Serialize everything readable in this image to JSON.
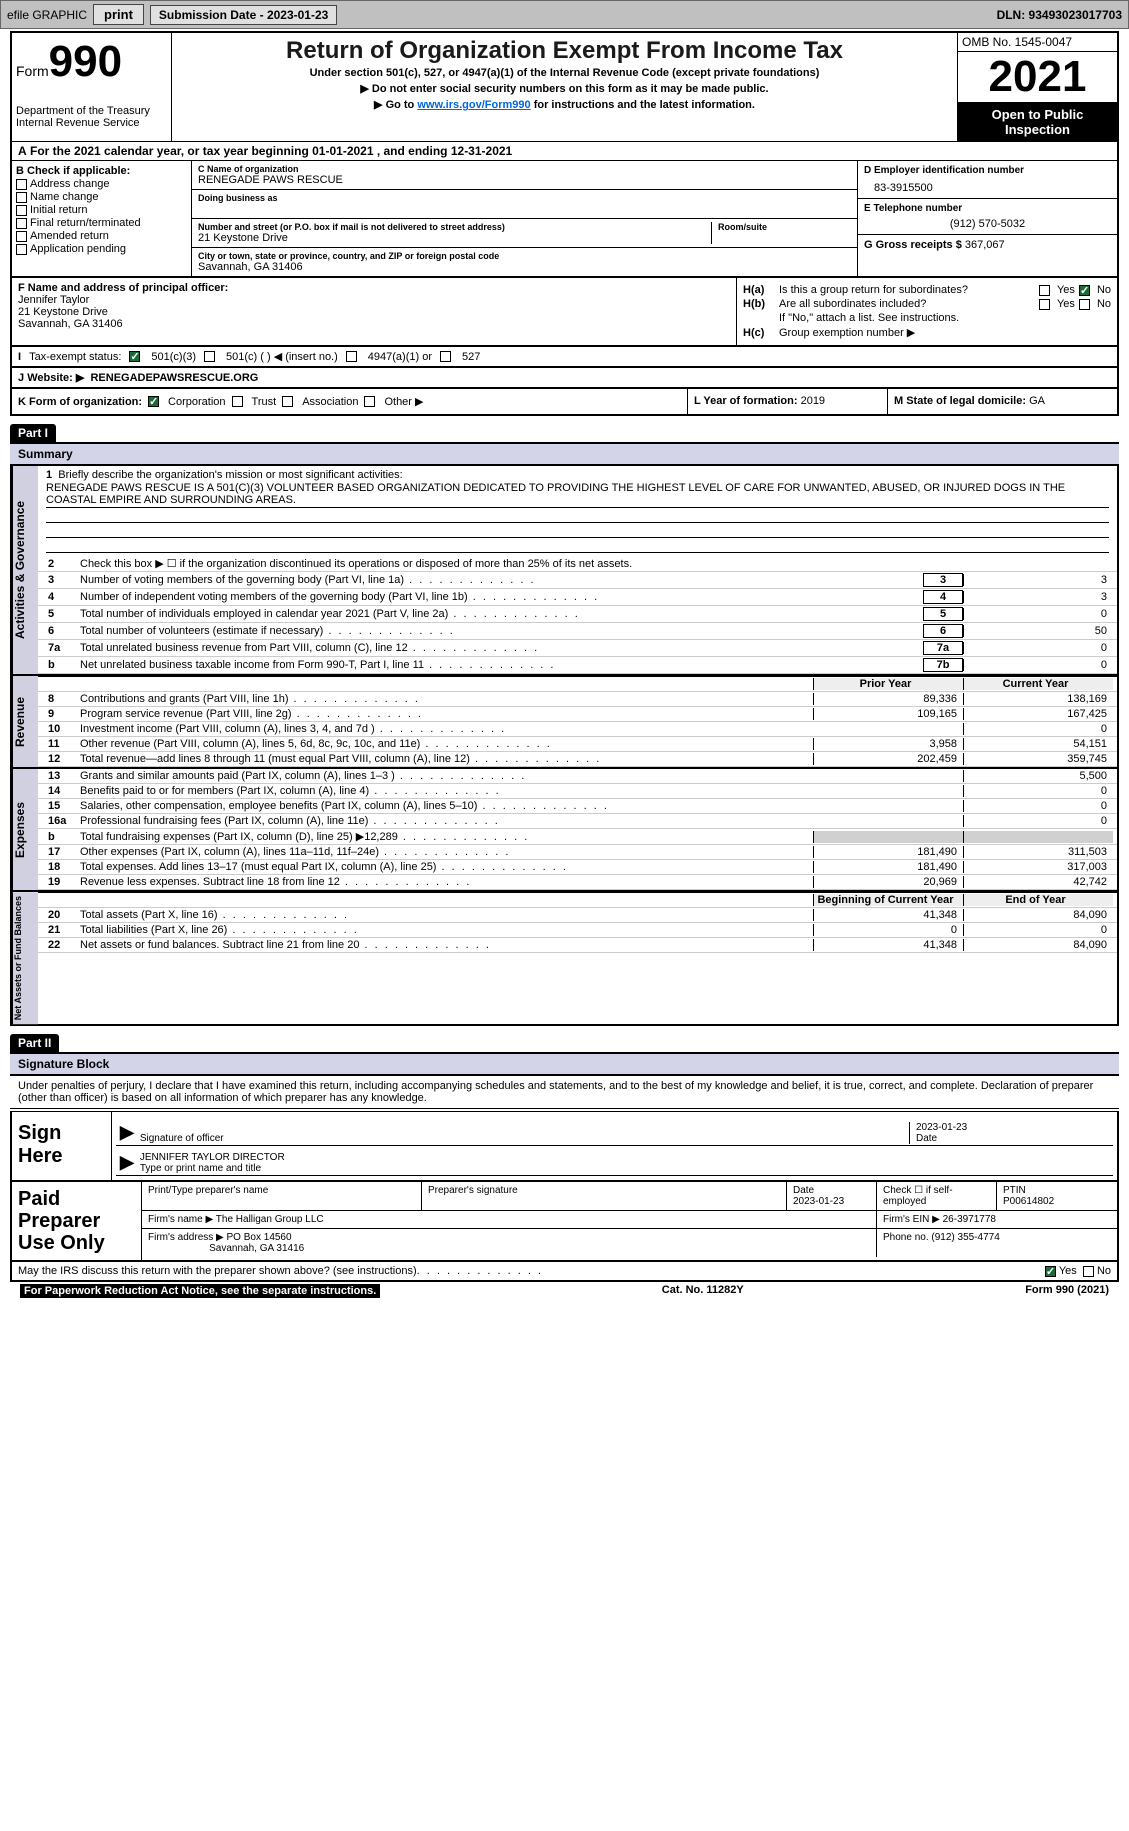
{
  "header_bar": {
    "efile_label": "efile GRAPHIC",
    "print_btn": "print",
    "sub_date_label": "Submission Date - 2023-01-23",
    "dln": "DLN: 93493023017703"
  },
  "top": {
    "form_prefix": "Form",
    "form_no": "990",
    "dept": "Department of the Treasury\nInternal Revenue Service",
    "title": "Return of Organization Exempt From Income Tax",
    "subtitle": "Under section 501(c), 527, or 4947(a)(1) of the Internal Revenue Code (except private foundations)",
    "instr1": "▶ Do not enter social security numbers on this form as it may be made public.",
    "instr2_pre": "▶ Go to ",
    "instr2_link": "www.irs.gov/Form990",
    "instr2_post": " for instructions and the latest information.",
    "omb": "OMB No. 1545-0047",
    "year": "2021",
    "open_pub": "Open to Public Inspection"
  },
  "sec_a": "For the 2021 calendar year, or tax year beginning 01-01-2021   , and ending 12-31-2021",
  "sec_b": {
    "label": "Check if applicable:",
    "opts": [
      "Address change",
      "Name change",
      "Initial return",
      "Final return/terminated",
      "Amended return",
      "Application pending"
    ]
  },
  "sec_c": {
    "name_lbl": "C Name of organization",
    "name": "RENEGADE PAWS RESCUE",
    "dba_lbl": "Doing business as",
    "addr_lbl": "Number and street (or P.O. box if mail is not delivered to street address)",
    "room_lbl": "Room/suite",
    "addr": "21 Keystone Drive",
    "city_lbl": "City or town, state or province, country, and ZIP or foreign postal code",
    "city": "Savannah, GA  31406"
  },
  "sec_d": {
    "ein_lbl": "D Employer identification number",
    "ein": "83-3915500",
    "phone_lbl": "E Telephone number",
    "phone": "(912) 570-5032",
    "gross_lbl": "G Gross receipts $",
    "gross": "367,067"
  },
  "sec_f": {
    "lbl": "F  Name and address of principal officer:",
    "name": "Jennifer Taylor",
    "addr1": "21 Keystone Drive",
    "addr2": "Savannah, GA  31406"
  },
  "sec_h": {
    "ha": "Is this a group return for subordinates?",
    "hb": "Are all subordinates included?",
    "hnote": "If \"No,\" attach a list. See instructions.",
    "hc": "Group exemption number ▶",
    "yes": "Yes",
    "no": "No"
  },
  "sec_i": {
    "lbl": "Tax-exempt status:",
    "o1": "501(c)(3)",
    "o2": "501(c) (  ) ◀ (insert no.)",
    "o3": "4947(a)(1) or",
    "o4": "527"
  },
  "sec_j": {
    "lbl": "Website: ▶",
    "val": "RENEGADEPAWSRESCUE.ORG"
  },
  "sec_k": {
    "lbl": "K Form of organization:",
    "opts": [
      "Corporation",
      "Trust",
      "Association",
      "Other ▶"
    ],
    "l_lbl": "L Year of formation:",
    "l_val": "2019",
    "m_lbl": "M State of legal domicile:",
    "m_val": "GA"
  },
  "part1": {
    "hdr": "Part I",
    "title": "Summary",
    "side1": "Activities & Governance",
    "side2": "Revenue",
    "side3": "Expenses",
    "side4": "Net Assets or Fund Balances",
    "l1_lbl": "Briefly describe the organization's mission or most significant activities:",
    "l1_txt": "RENEGADE PAWS RESCUE IS A 501(C)(3) VOLUNTEER BASED ORGANIZATION DEDICATED TO PROVIDING THE HIGHEST LEVEL OF CARE FOR UNWANTED, ABUSED, OR INJURED DOGS IN THE COASTAL EMPIRE AND SURROUNDING AREAS.",
    "l2": "Check this box ▶ ☐  if the organization discontinued its operations or disposed of more than 25% of its net assets.",
    "lines_gov": [
      {
        "n": "3",
        "t": "Number of voting members of the governing body (Part VI, line 1a)",
        "box": "3",
        "v": "3"
      },
      {
        "n": "4",
        "t": "Number of independent voting members of the governing body (Part VI, line 1b)",
        "box": "4",
        "v": "3"
      },
      {
        "n": "5",
        "t": "Total number of individuals employed in calendar year 2021 (Part V, line 2a)",
        "box": "5",
        "v": "0"
      },
      {
        "n": "6",
        "t": "Total number of volunteers (estimate if necessary)",
        "box": "6",
        "v": "50"
      },
      {
        "n": "7a",
        "t": "Total unrelated business revenue from Part VIII, column (C), line 12",
        "box": "7a",
        "v": "0"
      },
      {
        "n": "b",
        "t": "Net unrelated business taxable income from Form 990-T, Part I, line 11",
        "box": "7b",
        "v": "0"
      }
    ],
    "col_prior": "Prior Year",
    "col_curr": "Current Year",
    "rev": [
      {
        "n": "8",
        "t": "Contributions and grants (Part VIII, line 1h)",
        "p": "89,336",
        "c": "138,169"
      },
      {
        "n": "9",
        "t": "Program service revenue (Part VIII, line 2g)",
        "p": "109,165",
        "c": "167,425"
      },
      {
        "n": "10",
        "t": "Investment income (Part VIII, column (A), lines 3, 4, and 7d )",
        "p": "",
        "c": "0"
      },
      {
        "n": "11",
        "t": "Other revenue (Part VIII, column (A), lines 5, 6d, 8c, 9c, 10c, and 11e)",
        "p": "3,958",
        "c": "54,151"
      },
      {
        "n": "12",
        "t": "Total revenue—add lines 8 through 11 (must equal Part VIII, column (A), line 12)",
        "p": "202,459",
        "c": "359,745"
      }
    ],
    "exp": [
      {
        "n": "13",
        "t": "Grants and similar amounts paid (Part IX, column (A), lines 1–3 )",
        "p": "",
        "c": "5,500"
      },
      {
        "n": "14",
        "t": "Benefits paid to or for members (Part IX, column (A), line 4)",
        "p": "",
        "c": "0"
      },
      {
        "n": "15",
        "t": "Salaries, other compensation, employee benefits (Part IX, column (A), lines 5–10)",
        "p": "",
        "c": "0"
      },
      {
        "n": "16a",
        "t": "Professional fundraising fees (Part IX, column (A), line 11e)",
        "p": "",
        "c": "0"
      },
      {
        "n": "b",
        "t": "Total fundraising expenses (Part IX, column (D), line 25) ▶12,289",
        "p": "gray",
        "c": "gray"
      },
      {
        "n": "17",
        "t": "Other expenses (Part IX, column (A), lines 11a–11d, 11f–24e)",
        "p": "181,490",
        "c": "311,503"
      },
      {
        "n": "18",
        "t": "Total expenses. Add lines 13–17 (must equal Part IX, column (A), line 25)",
        "p": "181,490",
        "c": "317,003"
      },
      {
        "n": "19",
        "t": "Revenue less expenses. Subtract line 18 from line 12",
        "p": "20,969",
        "c": "42,742"
      }
    ],
    "col_beg": "Beginning of Current Year",
    "col_end": "End of Year",
    "net": [
      {
        "n": "20",
        "t": "Total assets (Part X, line 16)",
        "p": "41,348",
        "c": "84,090"
      },
      {
        "n": "21",
        "t": "Total liabilities (Part X, line 26)",
        "p": "0",
        "c": "0"
      },
      {
        "n": "22",
        "t": "Net assets or fund balances. Subtract line 21 from line 20",
        "p": "41,348",
        "c": "84,090"
      }
    ]
  },
  "part2": {
    "hdr": "Part II",
    "title": "Signature Block",
    "decl": "Under penalties of perjury, I declare that I have examined this return, including accompanying schedules and statements, and to the best of my knowledge and belief, it is true, correct, and complete. Declaration of preparer (other than officer) is based on all information of which preparer has any knowledge.",
    "sign_here": "Sign Here",
    "sig_of_officer": "Signature of officer",
    "sig_date": "2023-01-23",
    "date_lbl": "Date",
    "officer_name": "JENNIFER TAYLOR  DIRECTOR",
    "type_name_lbl": "Type or print name and title",
    "paid_lbl": "Paid Preparer Use Only",
    "prep_name_lbl": "Print/Type preparer's name",
    "prep_sig_lbl": "Preparer's signature",
    "prep_date_lbl": "Date",
    "prep_date": "2023-01-23",
    "check_self": "Check ☐ if self-employed",
    "ptin_lbl": "PTIN",
    "ptin": "P00614802",
    "firm_name_lbl": "Firm's name    ▶",
    "firm_name": "The Halligan Group LLC",
    "firm_ein_lbl": "Firm's EIN ▶",
    "firm_ein": "26-3971778",
    "firm_addr_lbl": "Firm's address ▶",
    "firm_addr": "PO Box 14560",
    "firm_city": "Savannah, GA  31416",
    "firm_phone_lbl": "Phone no.",
    "firm_phone": "(912) 355-4774",
    "irs_q": "May the IRS discuss this return with the preparer shown above? (see instructions)"
  },
  "footer": {
    "pwr": "For Paperwork Reduction Act Notice, see the separate instructions.",
    "cat": "Cat. No. 11282Y",
    "form": "Form 990 (2021)"
  }
}
